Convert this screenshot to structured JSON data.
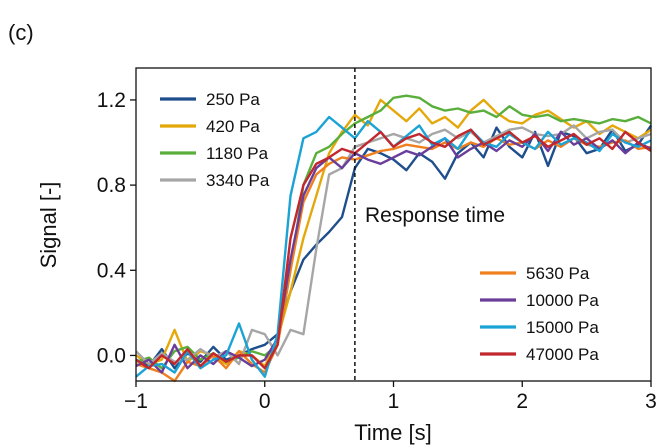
{
  "panel_label": "(c)",
  "chart_data": {
    "type": "line",
    "title": "",
    "xlabel": "Time [s]",
    "ylabel": "Signal [-]",
    "xlim": [
      -1,
      3
    ],
    "ylim": [
      -0.12,
      1.35
    ],
    "xticks": [
      -1,
      0,
      1,
      2,
      3
    ],
    "xtick_labels": [
      "−1",
      "0",
      "1",
      "2",
      "3"
    ],
    "yticks": [
      0.0,
      0.4,
      0.8,
      1.2
    ],
    "ytick_labels": [
      "0.0",
      "0.4",
      "0.8",
      "1.2"
    ],
    "grid": false,
    "annotation": {
      "text": "Response time",
      "x": 0.7
    },
    "legends": [
      {
        "placement": "upper-left",
        "entries": [
          "250 Pa",
          "420 Pa",
          "1180 Pa",
          "3340 Pa"
        ]
      },
      {
        "placement": "lower-right",
        "entries": [
          "5630 Pa",
          "10000 Pa",
          "15000 Pa",
          "47000 Pa"
        ]
      }
    ],
    "x": [
      -1.0,
      -0.9,
      -0.8,
      -0.7,
      -0.6,
      -0.5,
      -0.4,
      -0.3,
      -0.2,
      -0.1,
      0.0,
      0.1,
      0.2,
      0.3,
      0.4,
      0.5,
      0.6,
      0.7,
      0.8,
      0.9,
      1.0,
      1.1,
      1.2,
      1.3,
      1.4,
      1.5,
      1.6,
      1.7,
      1.8,
      1.9,
      2.0,
      2.1,
      2.2,
      2.3,
      2.4,
      2.5,
      2.6,
      2.7,
      2.8,
      2.9,
      3.0
    ],
    "series": [
      {
        "name": "250 Pa",
        "color": "#1f4e8c",
        "values": [
          -0.02,
          -0.05,
          0.03,
          -0.06,
          0.01,
          -0.03,
          0.04,
          -0.02,
          0.0,
          0.03,
          0.05,
          0.1,
          0.3,
          0.45,
          0.52,
          0.58,
          0.65,
          0.88,
          0.97,
          0.95,
          0.92,
          0.87,
          0.95,
          0.91,
          0.83,
          0.95,
          1.0,
          0.93,
          1.07,
          0.98,
          0.93,
          1.05,
          0.89,
          1.05,
          1.03,
          0.95,
          0.97,
          1.06,
          0.96,
          0.99,
          1.08
        ]
      },
      {
        "name": "420 Pa",
        "color": "#e5a80b",
        "values": [
          0.0,
          -0.04,
          -0.02,
          0.12,
          -0.03,
          0.02,
          0.0,
          -0.04,
          0.02,
          0.0,
          -0.05,
          0.08,
          0.3,
          0.55,
          0.75,
          0.95,
          1.05,
          1.13,
          1.08,
          1.2,
          1.15,
          1.1,
          1.16,
          1.09,
          1.12,
          1.07,
          1.15,
          1.2,
          1.14,
          1.1,
          1.09,
          1.13,
          1.15,
          1.11,
          1.07,
          1.1,
          1.04,
          1.08,
          1.05,
          1.02,
          1.06
        ]
      },
      {
        "name": "1180 Pa",
        "color": "#5aaf3c",
        "values": [
          -0.03,
          -0.01,
          -0.06,
          0.02,
          0.04,
          -0.02,
          0.01,
          -0.03,
          -0.01,
          0.02,
          0.0,
          0.05,
          0.4,
          0.8,
          0.95,
          0.98,
          1.04,
          1.09,
          1.12,
          1.15,
          1.21,
          1.22,
          1.21,
          1.17,
          1.15,
          1.16,
          1.14,
          1.15,
          1.12,
          1.17,
          1.13,
          1.12,
          1.13,
          1.1,
          1.11,
          1.1,
          1.09,
          1.11,
          1.1,
          1.12,
          1.09
        ]
      },
      {
        "name": "3340 Pa",
        "color": "#a6a6a6",
        "values": [
          0.02,
          -0.04,
          0.01,
          -0.03,
          -0.02,
          0.03,
          -0.01,
          0.02,
          -0.04,
          0.12,
          0.1,
          0.0,
          0.12,
          0.1,
          0.5,
          0.85,
          0.88,
          0.98,
          1.0,
          1.02,
          1.04,
          1.02,
          1.0,
          1.04,
          1.06,
          1.02,
          1.05,
          1.0,
          1.03,
          1.06,
          1.07,
          1.04,
          1.03,
          1.04,
          1.08,
          1.02,
          1.05,
          1.06,
          1.0,
          1.02,
          1.04
        ]
      },
      {
        "name": "5630 Pa",
        "color": "#f07f1e",
        "values": [
          -0.04,
          -0.06,
          -0.08,
          -0.12,
          -0.03,
          -0.05,
          0.0,
          -0.06,
          0.02,
          -0.04,
          -0.08,
          0.05,
          0.4,
          0.72,
          0.85,
          0.9,
          0.93,
          0.92,
          0.94,
          0.96,
          0.97,
          0.99,
          0.98,
          0.97,
          1.0,
          0.97,
          1.0,
          0.98,
          1.02,
          0.99,
          1.0,
          0.97,
          1.01,
          0.98,
          1.02,
          0.99,
          0.98,
          1.0,
          1.01,
          0.97,
          0.98
        ]
      },
      {
        "name": "10000 Pa",
        "color": "#6a3d9a",
        "values": [
          -0.05,
          -0.02,
          -0.08,
          0.05,
          -0.06,
          0.0,
          -0.04,
          0.02,
          -0.01,
          -0.05,
          -0.02,
          0.08,
          0.45,
          0.75,
          0.88,
          0.93,
          0.88,
          0.95,
          0.92,
          0.9,
          0.93,
          0.96,
          0.94,
          0.98,
          1.02,
          0.93,
          0.97,
          1.0,
          0.96,
          1.01,
          0.98,
          1.04,
          0.96,
          1.05,
          0.99,
          1.02,
          0.97,
          1.01,
          0.95,
          1.0,
          0.97
        ]
      },
      {
        "name": "15000 Pa",
        "color": "#1aa3d4",
        "values": [
          -0.1,
          -0.05,
          -0.04,
          -0.08,
          0.02,
          -0.06,
          -0.02,
          0.0,
          0.15,
          -0.02,
          -0.1,
          0.1,
          0.75,
          1.02,
          1.05,
          1.12,
          1.07,
          1.02,
          1.1,
          1.05,
          0.98,
          1.03,
          1.08,
          0.99,
          1.02,
          0.97,
          1.06,
          1.0,
          0.98,
          1.04,
          1.0,
          0.97,
          1.05,
          0.99,
          1.02,
          1.0,
          0.96,
          1.04,
          1.0,
          0.98,
          1.01
        ]
      },
      {
        "name": "47000 Pa",
        "color": "#c1272d",
        "values": [
          -0.02,
          -0.06,
          0.0,
          -0.04,
          0.03,
          -0.05,
          0.01,
          -0.03,
          0.0,
          0.0,
          -0.06,
          0.05,
          0.55,
          0.8,
          0.9,
          0.93,
          0.97,
          0.95,
          1.0,
          1.05,
          0.98,
          1.02,
          1.04,
          1.0,
          0.98,
          1.03,
          1.06,
          0.99,
          1.02,
          1.05,
          1.0,
          1.03,
          0.98,
          1.01,
          1.04,
          0.99,
          1.02,
          0.97,
          1.05,
          1.0,
          0.96
        ]
      }
    ]
  }
}
